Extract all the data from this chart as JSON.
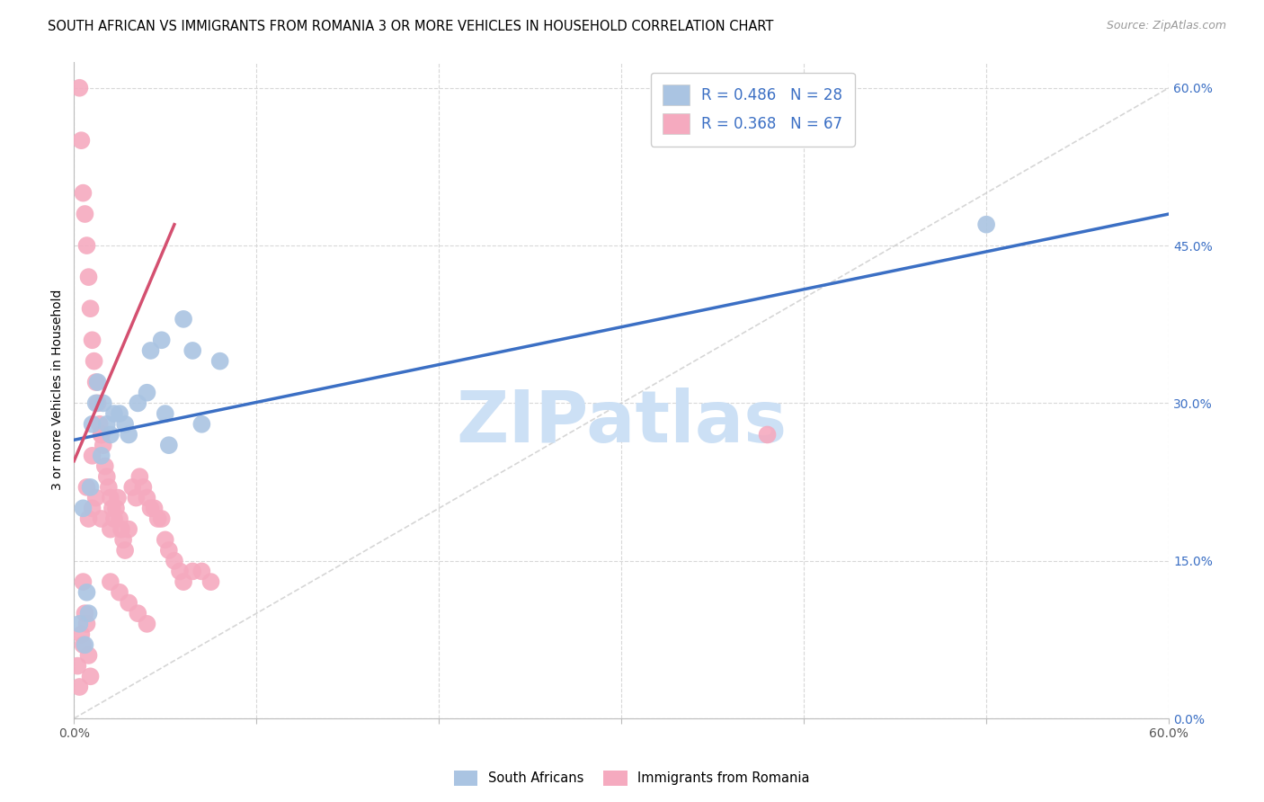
{
  "title": "SOUTH AFRICAN VS IMMIGRANTS FROM ROMANIA 3 OR MORE VEHICLES IN HOUSEHOLD CORRELATION CHART",
  "source": "Source: ZipAtlas.com",
  "ylabel": "3 or more Vehicles in Household",
  "xlim": [
    0.0,
    0.6
  ],
  "ylim": [
    0.0,
    0.625
  ],
  "xticks": [
    0.0,
    0.1,
    0.2,
    0.3,
    0.4,
    0.5,
    0.6
  ],
  "xticklabels": [
    "0.0%",
    "",
    "",
    "",
    "",
    "",
    "60.0%"
  ],
  "yticks_right": [
    0.0,
    0.15,
    0.3,
    0.45,
    0.6
  ],
  "yticklabels_right": [
    "0.0%",
    "15.0%",
    "30.0%",
    "45.0%",
    "60.0%"
  ],
  "blue_R": 0.486,
  "blue_N": 28,
  "pink_R": 0.368,
  "pink_N": 67,
  "blue_color": "#aac4e2",
  "pink_color": "#f5aabf",
  "blue_line_color": "#3b6fc4",
  "pink_line_color": "#d45070",
  "grid_color": "#d8d8d8",
  "background_color": "#ffffff",
  "watermark": "ZIPatlas",
  "watermark_color": "#cce0f5",
  "blue_line_x0": 0.0,
  "blue_line_y0": 0.265,
  "blue_line_x1": 0.6,
  "blue_line_y1": 0.48,
  "pink_line_x0": 0.0,
  "pink_line_y0": 0.245,
  "pink_line_x1": 0.055,
  "pink_line_y1": 0.47,
  "blue_scatter_x": [
    0.005,
    0.007,
    0.008,
    0.009,
    0.01,
    0.012,
    0.013,
    0.015,
    0.016,
    0.018,
    0.02,
    0.022,
    0.025,
    0.028,
    0.03,
    0.035,
    0.04,
    0.042,
    0.048,
    0.05,
    0.052,
    0.06,
    0.065,
    0.07,
    0.08,
    0.5,
    0.003,
    0.006
  ],
  "blue_scatter_y": [
    0.2,
    0.12,
    0.1,
    0.22,
    0.28,
    0.3,
    0.32,
    0.25,
    0.3,
    0.28,
    0.27,
    0.29,
    0.29,
    0.28,
    0.27,
    0.3,
    0.31,
    0.35,
    0.36,
    0.29,
    0.26,
    0.38,
    0.35,
    0.28,
    0.34,
    0.47,
    0.09,
    0.07
  ],
  "pink_scatter_x": [
    0.003,
    0.004,
    0.005,
    0.005,
    0.006,
    0.007,
    0.007,
    0.008,
    0.008,
    0.009,
    0.01,
    0.01,
    0.011,
    0.012,
    0.012,
    0.013,
    0.014,
    0.015,
    0.015,
    0.016,
    0.017,
    0.018,
    0.019,
    0.02,
    0.02,
    0.021,
    0.022,
    0.023,
    0.024,
    0.025,
    0.026,
    0.027,
    0.028,
    0.03,
    0.032,
    0.034,
    0.036,
    0.038,
    0.04,
    0.042,
    0.044,
    0.046,
    0.048,
    0.05,
    0.052,
    0.055,
    0.058,
    0.06,
    0.065,
    0.07,
    0.075,
    0.002,
    0.003,
    0.004,
    0.005,
    0.006,
    0.007,
    0.008,
    0.009,
    0.01,
    0.015,
    0.02,
    0.025,
    0.03,
    0.035,
    0.04,
    0.38
  ],
  "pink_scatter_y": [
    0.6,
    0.55,
    0.5,
    0.13,
    0.48,
    0.45,
    0.22,
    0.42,
    0.19,
    0.39,
    0.36,
    0.2,
    0.34,
    0.32,
    0.21,
    0.3,
    0.28,
    0.27,
    0.19,
    0.26,
    0.24,
    0.23,
    0.22,
    0.21,
    0.18,
    0.2,
    0.19,
    0.2,
    0.21,
    0.19,
    0.18,
    0.17,
    0.16,
    0.18,
    0.22,
    0.21,
    0.23,
    0.22,
    0.21,
    0.2,
    0.2,
    0.19,
    0.19,
    0.17,
    0.16,
    0.15,
    0.14,
    0.13,
    0.14,
    0.14,
    0.13,
    0.05,
    0.03,
    0.08,
    0.07,
    0.1,
    0.09,
    0.06,
    0.04,
    0.25,
    0.27,
    0.13,
    0.12,
    0.11,
    0.1,
    0.09,
    0.27
  ]
}
